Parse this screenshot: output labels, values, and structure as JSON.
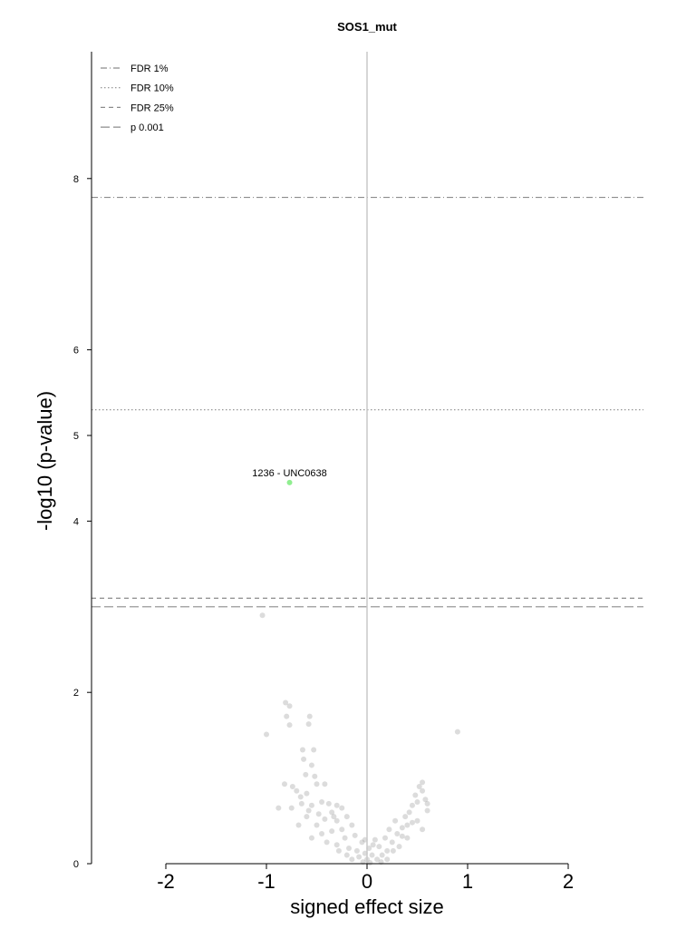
{
  "chart_data": {
    "type": "scatter",
    "title": "SOS1_mut",
    "xlabel": "signed effect size",
    "ylabel": "-log10 (p-value)",
    "xlim": [
      -2.8,
      2.8
    ],
    "ylim": [
      0,
      9.5
    ],
    "xticks": [
      -2,
      -1,
      0,
      1,
      2
    ],
    "yticks": [
      0,
      2,
      4,
      5,
      6,
      8
    ],
    "legend_position": "top-left",
    "thresholds": [
      {
        "name": "FDR 1%",
        "y": 7.78,
        "style": "dashdot"
      },
      {
        "name": "FDR 10%",
        "y": 5.3,
        "style": "dotted"
      },
      {
        "name": "FDR 25%",
        "y": 3.1,
        "style": "dashed"
      },
      {
        "name": "p 0.001",
        "y": 3.0,
        "style": "longdash"
      }
    ],
    "highlight": {
      "label": "1236 - UNC0638",
      "x": -0.77,
      "y": 4.45,
      "color": "#90ee90"
    },
    "series": [
      {
        "color": "#9a9a9a",
        "points": [
          [
            -1.04,
            2.9
          ],
          [
            -0.81,
            1.88
          ],
          [
            -0.77,
            1.84
          ],
          [
            -0.57,
            1.72
          ],
          [
            -0.8,
            1.72
          ],
          [
            -1.0,
            1.51
          ],
          [
            -0.77,
            1.62
          ],
          [
            -0.58,
            1.63
          ],
          [
            0.9,
            1.54
          ],
          [
            -0.64,
            1.33
          ],
          [
            -0.53,
            1.33
          ],
          [
            -0.63,
            1.22
          ],
          [
            -0.55,
            1.15
          ],
          [
            -0.52,
            1.02
          ],
          [
            -0.61,
            1.04
          ],
          [
            -0.42,
            0.93
          ],
          [
            -0.5,
            0.93
          ],
          [
            -0.82,
            0.93
          ],
          [
            -0.74,
            0.9
          ],
          [
            -0.7,
            0.85
          ],
          [
            -0.66,
            0.78
          ],
          [
            -0.6,
            0.82
          ],
          [
            -0.88,
            0.65
          ],
          [
            -0.75,
            0.65
          ],
          [
            -0.55,
            0.68
          ],
          [
            -0.45,
            0.72
          ],
          [
            -0.38,
            0.7
          ],
          [
            -0.3,
            0.68
          ],
          [
            -0.25,
            0.65
          ],
          [
            -0.35,
            0.6
          ],
          [
            -0.48,
            0.58
          ],
          [
            -0.42,
            0.52
          ],
          [
            -0.3,
            0.5
          ],
          [
            -0.2,
            0.55
          ],
          [
            -0.15,
            0.45
          ],
          [
            -0.25,
            0.4
          ],
          [
            -0.35,
            0.38
          ],
          [
            -0.45,
            0.35
          ],
          [
            -0.55,
            0.3
          ],
          [
            -0.4,
            0.25
          ],
          [
            -0.3,
            0.22
          ],
          [
            -0.22,
            0.3
          ],
          [
            -0.12,
            0.33
          ],
          [
            -0.05,
            0.25
          ],
          [
            -0.18,
            0.18
          ],
          [
            -0.28,
            0.15
          ],
          [
            -0.1,
            0.15
          ],
          [
            -0.02,
            0.12
          ],
          [
            0.05,
            0.1
          ],
          [
            -0.08,
            0.08
          ],
          [
            0.0,
            0.05
          ],
          [
            0.1,
            0.05
          ],
          [
            -0.04,
            0.02
          ],
          [
            0.03,
            0.01
          ],
          [
            -0.15,
            0.05
          ],
          [
            0.15,
            0.1
          ],
          [
            0.2,
            0.15
          ],
          [
            0.12,
            0.2
          ],
          [
            0.08,
            0.28
          ],
          [
            0.18,
            0.3
          ],
          [
            0.25,
            0.25
          ],
          [
            0.3,
            0.35
          ],
          [
            0.22,
            0.4
          ],
          [
            0.35,
            0.42
          ],
          [
            0.28,
            0.5
          ],
          [
            0.38,
            0.55
          ],
          [
            0.42,
            0.6
          ],
          [
            0.45,
            0.68
          ],
          [
            0.5,
            0.72
          ],
          [
            0.48,
            0.8
          ],
          [
            0.52,
            0.9
          ],
          [
            0.55,
            0.95
          ],
          [
            0.55,
            0.85
          ],
          [
            0.58,
            0.75
          ],
          [
            0.6,
            0.62
          ],
          [
            0.5,
            0.5
          ],
          [
            0.4,
            0.45
          ],
          [
            0.55,
            0.4
          ],
          [
            0.32,
            0.2
          ],
          [
            0.26,
            0.15
          ],
          [
            0.4,
            0.3
          ],
          [
            0.6,
            0.7
          ],
          [
            0.45,
            0.48
          ],
          [
            0.35,
            0.32
          ],
          [
            -0.6,
            0.55
          ],
          [
            -0.5,
            0.45
          ],
          [
            -0.65,
            0.7
          ],
          [
            -0.58,
            0.62
          ],
          [
            -0.68,
            0.45
          ],
          [
            -0.33,
            0.55
          ],
          [
            0.02,
            0.18
          ],
          [
            0.06,
            0.22
          ],
          [
            -0.02,
            0.28
          ],
          [
            0.14,
            0.02
          ],
          [
            0.2,
            0.05
          ],
          [
            -0.2,
            0.1
          ]
        ]
      }
    ]
  }
}
